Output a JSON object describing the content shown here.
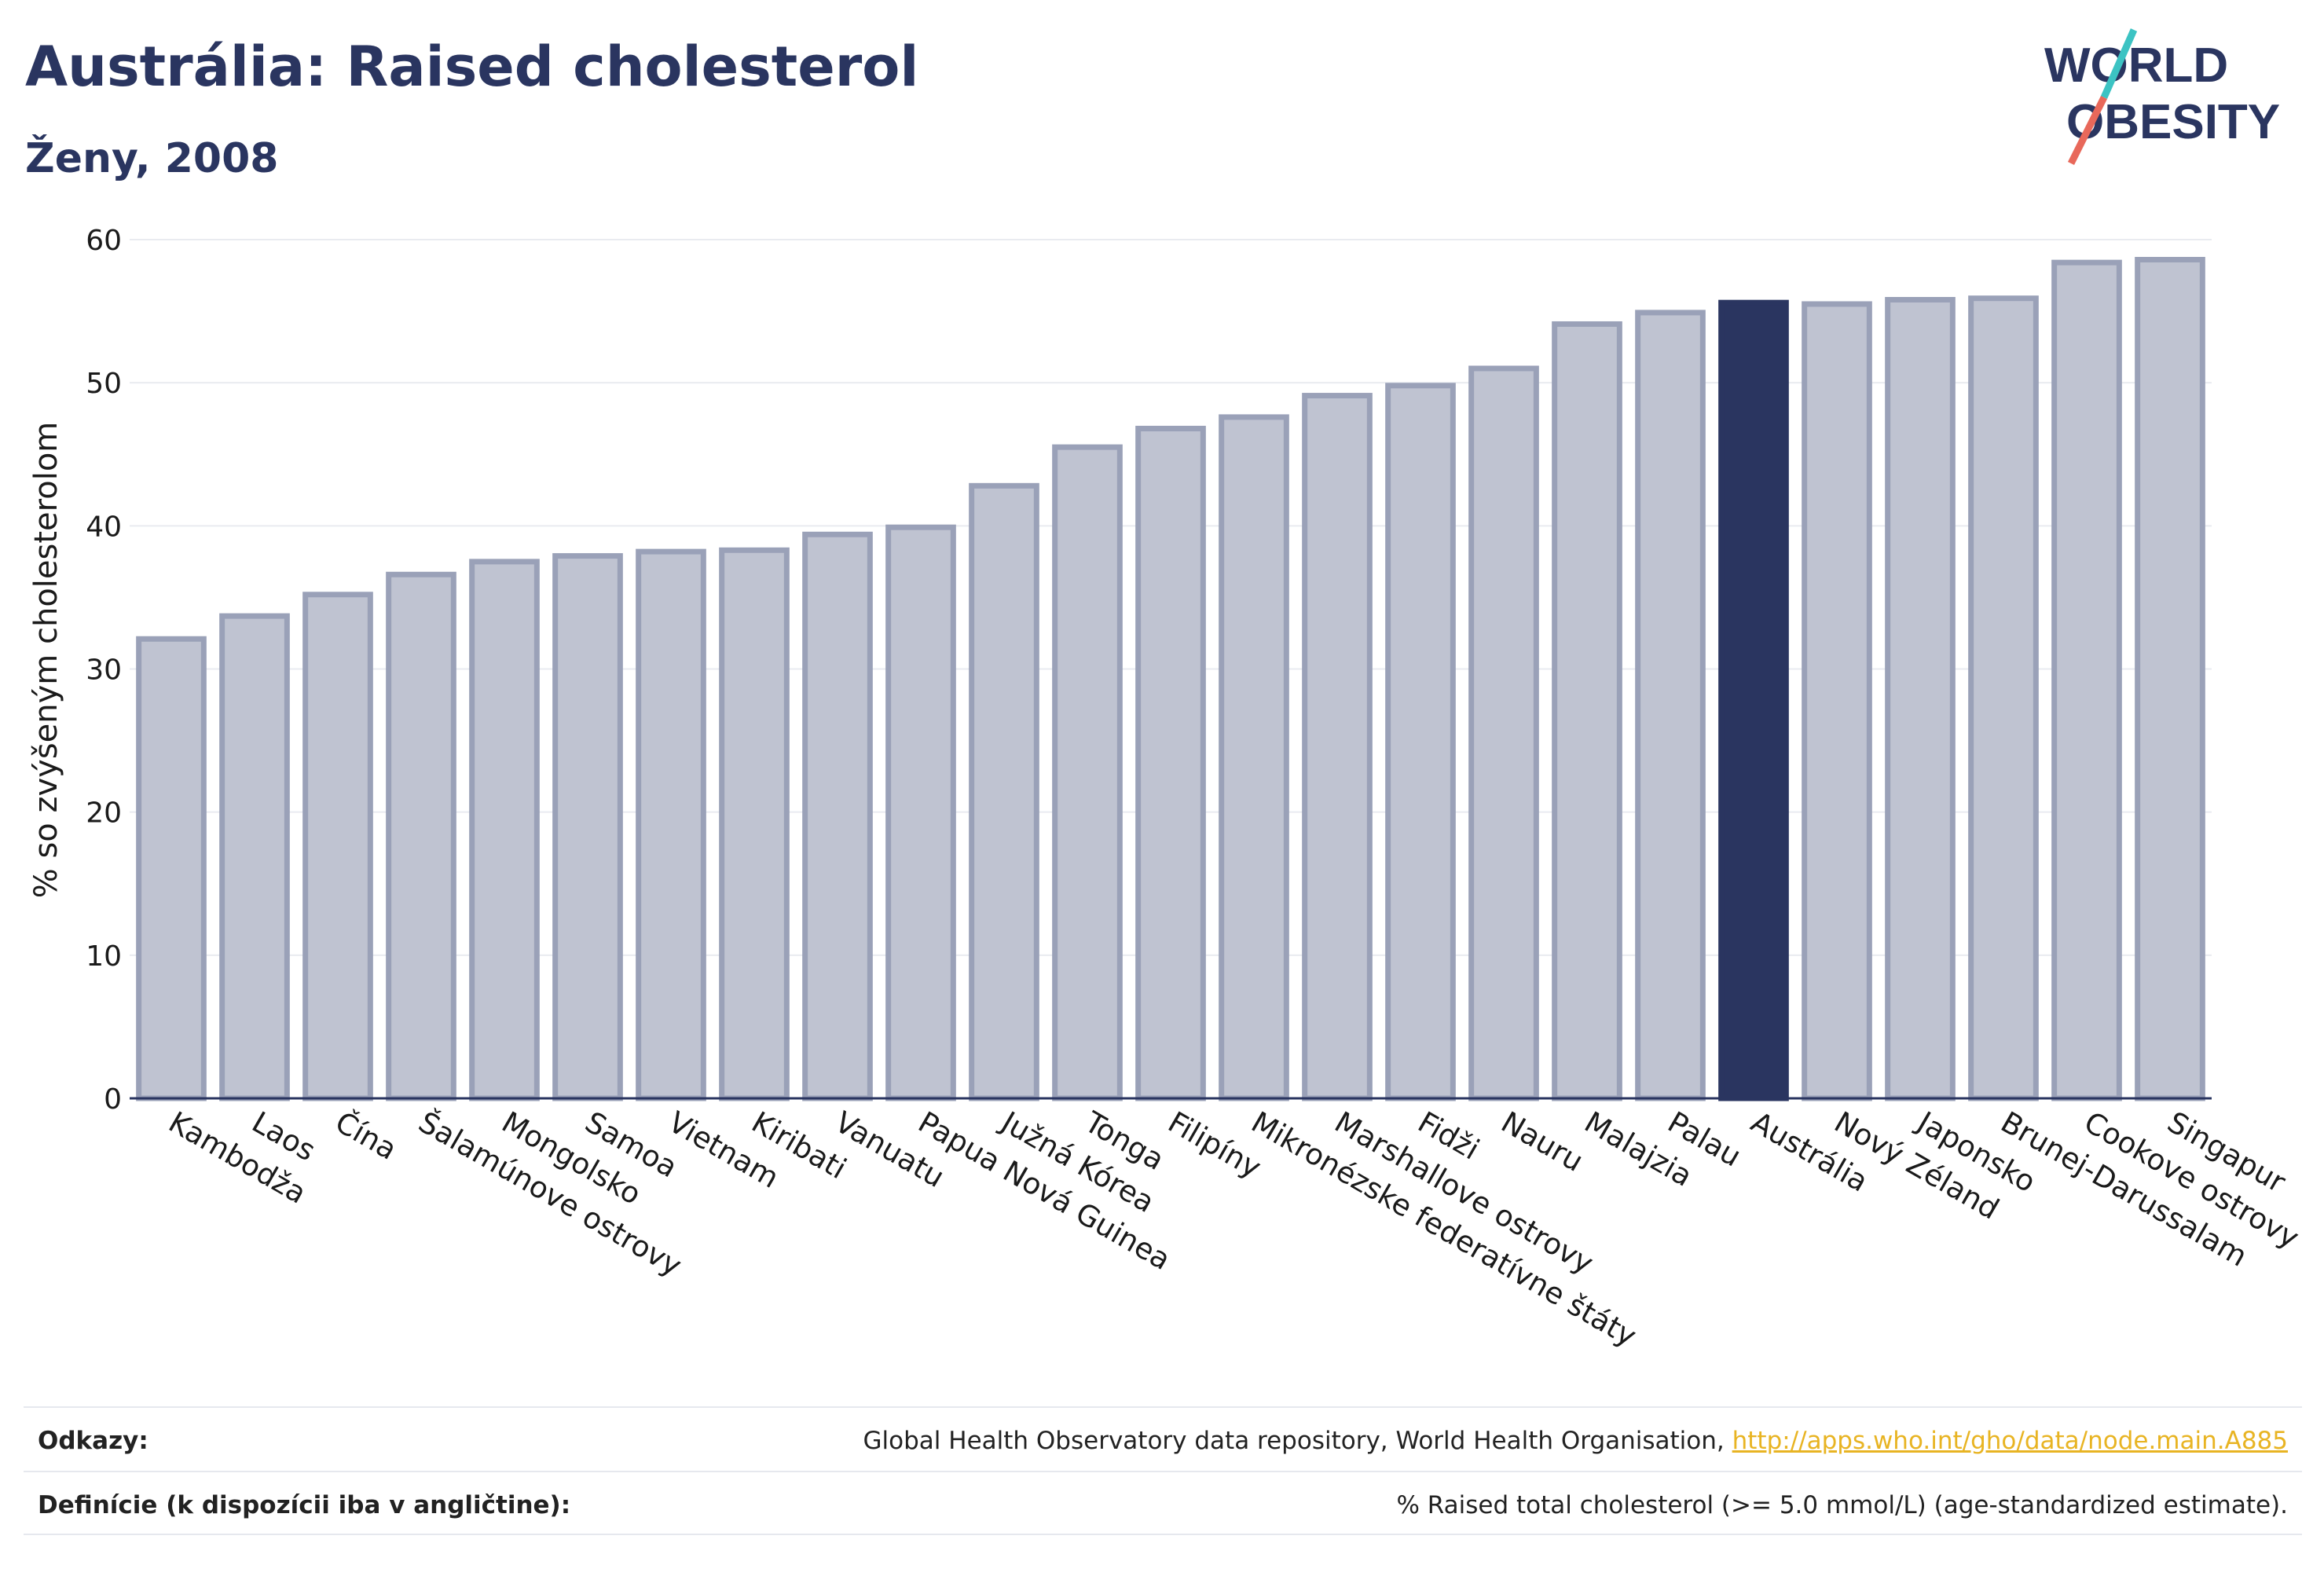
{
  "header": {
    "title": "Austrália: Raised cholesterol",
    "subtitle": "Ženy, 2008"
  },
  "logo": {
    "line1": "WORLD",
    "line2": "OBESITY",
    "accent_teal": "#3cc3c3",
    "accent_coral": "#e8685a",
    "text_color": "#2a3560"
  },
  "chart_data": {
    "type": "bar",
    "ylabel": "% so zvýšeným cholesterolom",
    "ylim": [
      0,
      60
    ],
    "yticks": [
      0,
      10,
      20,
      30,
      40,
      50,
      60
    ],
    "grid": true,
    "highlight": "Austrália",
    "colors": {
      "bar": "#bfc3d1",
      "bar_stroke": "#9aa1b8",
      "highlight": "#2a3560"
    },
    "categories": [
      "Kambodža",
      "Laos",
      "Čína",
      "Šalamúnove ostrovy",
      "Mongolsko",
      "Samoa",
      "Vietnam",
      "Kiribati",
      "Vanuatu",
      "Papua Nová Guinea",
      "Južná Kórea",
      "Tonga",
      "Filipíny",
      "Mikronézske federatívne štáty",
      "Marshallove ostrovy",
      "Fidži",
      "Nauru",
      "Malajzia",
      "Palau",
      "Austrália",
      "Nový Zéland",
      "Japonsko",
      "Brunej-Darussalam",
      "Cookove ostrovy",
      "Singapur"
    ],
    "values": [
      32.1,
      33.7,
      35.2,
      36.6,
      37.5,
      37.9,
      38.2,
      38.3,
      39.4,
      39.9,
      42.8,
      45.5,
      46.8,
      47.6,
      49.1,
      49.8,
      51.0,
      54.1,
      54.9,
      55.6,
      55.5,
      55.8,
      55.9,
      58.4,
      58.6
    ]
  },
  "footer": {
    "refs_label": "Odkazy:",
    "refs_text": "Global Health Observatory data repository, World Health Organisation, ",
    "refs_link": "http://apps.who.int/gho/data/node.main.A885",
    "defs_label": "Definície (k dispozícii iba v angličtine):",
    "defs_text": "% Raised total cholesterol (>= 5.0 mmol/L) (age-standardized estimate)."
  }
}
